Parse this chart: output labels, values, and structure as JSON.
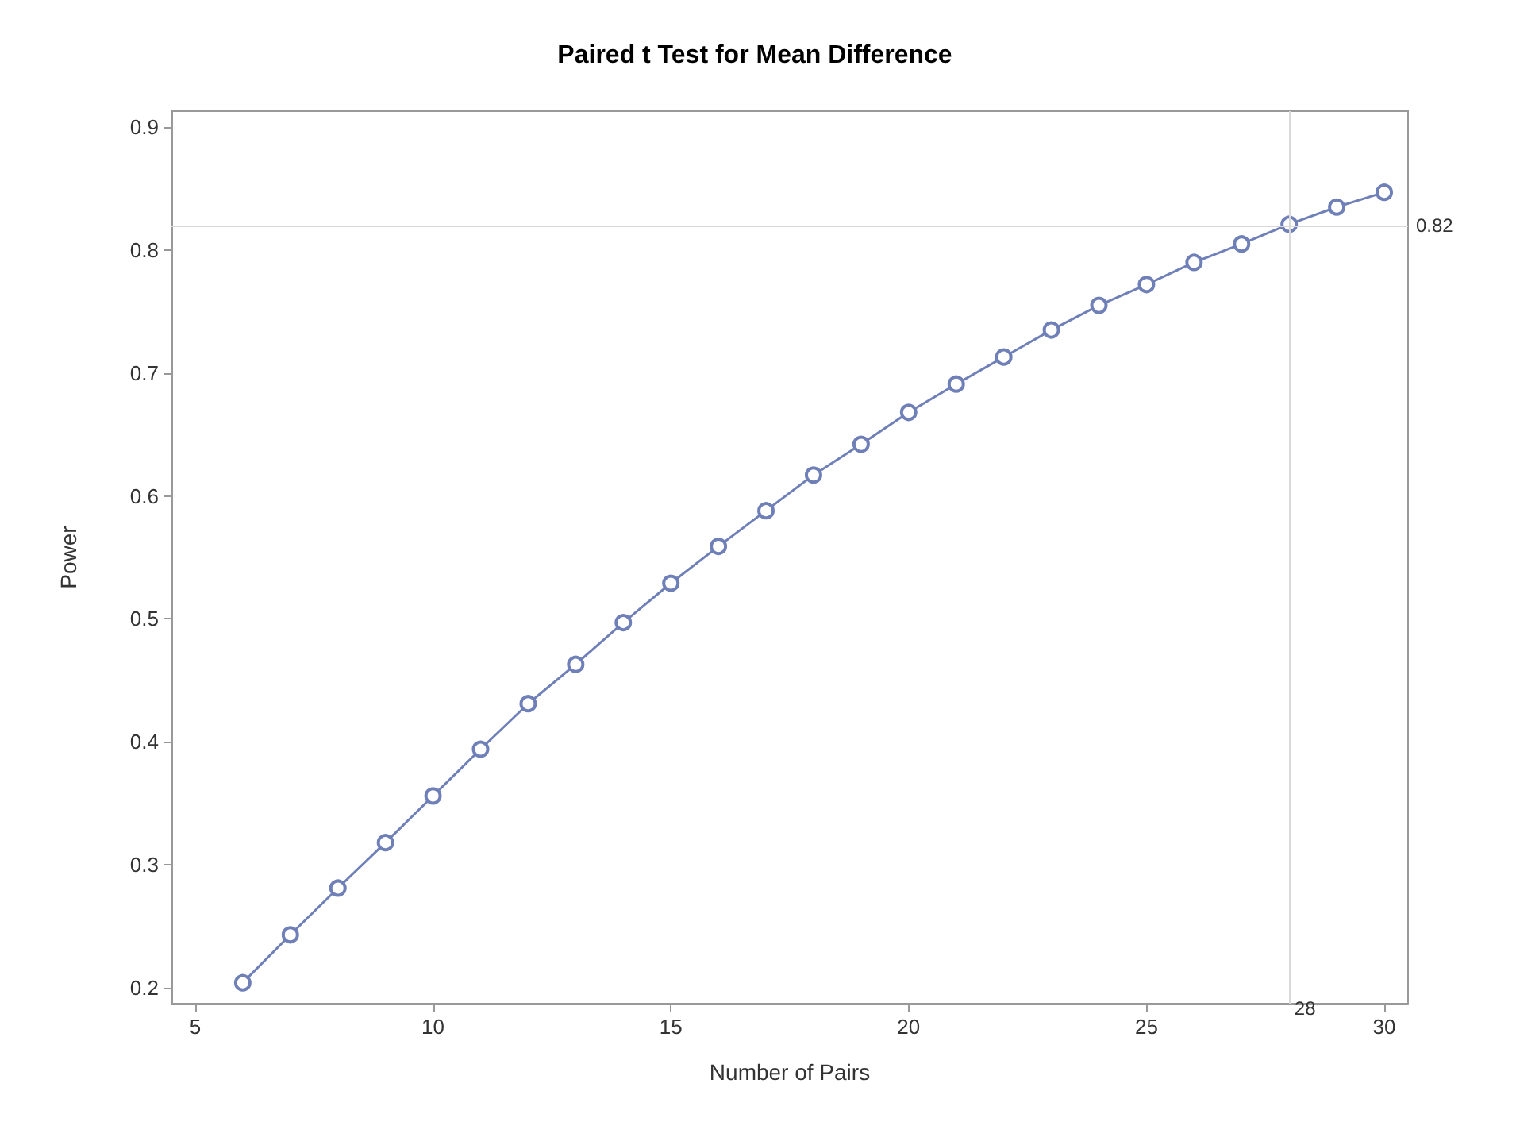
{
  "chart_data": {
    "type": "line",
    "title": "Paired t Test for Mean Difference",
    "xlabel": "Number of Pairs",
    "ylabel": "Power",
    "x": [
      6,
      7,
      8,
      9,
      10,
      11,
      12,
      13,
      14,
      15,
      16,
      17,
      18,
      19,
      20,
      21,
      22,
      23,
      24,
      25,
      26,
      27,
      28,
      29,
      30
    ],
    "series": [
      {
        "color": "#6f7fb8",
        "values": [
          0.204,
          0.243,
          0.281,
          0.318,
          0.356,
          0.394,
          0.431,
          0.463,
          0.497,
          0.529,
          0.559,
          0.588,
          0.617,
          0.642,
          0.668,
          0.691,
          0.713,
          0.735,
          0.755,
          0.772,
          0.79,
          0.805,
          0.821,
          0.835,
          0.847
        ]
      }
    ],
    "xlim": [
      4.5,
      30.5
    ],
    "xticks": [
      5,
      10,
      15,
      20,
      25,
      30
    ],
    "ylim": [
      0.187,
      0.913
    ],
    "yticks": [
      0.2,
      0.3,
      0.4,
      0.5,
      0.6,
      0.7,
      0.8,
      0.9
    ],
    "ref_lines": [
      {
        "axis": "y",
        "value": 0.82,
        "label": "0.82",
        "color": "#d9d9d9"
      },
      {
        "axis": "x",
        "value": 28,
        "label": "28",
        "color": "#d9d9d9"
      }
    ],
    "marker": "circle",
    "line_style": "solid",
    "grid": false
  }
}
